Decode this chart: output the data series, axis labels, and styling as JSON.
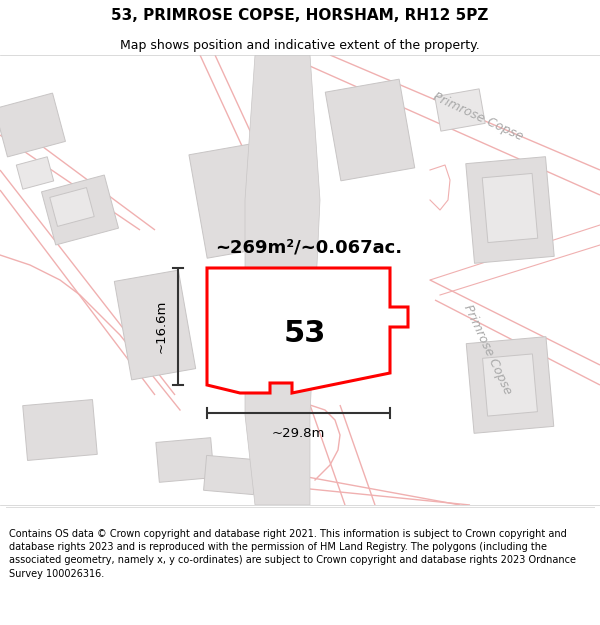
{
  "title": "53, PRIMROSE COPSE, HORSHAM, RH12 5PZ",
  "subtitle": "Map shows position and indicative extent of the property.",
  "area_label": "~269m²/~0.067ac.",
  "number_label": "53",
  "width_label": "~29.8m",
  "height_label": "~16.6m",
  "footer": "Contains OS data © Crown copyright and database right 2021. This information is subject to Crown copyright and database rights 2023 and is reproduced with the permission of HM Land Registry. The polygons (including the associated geometry, namely x, y co-ordinates) are subject to Crown copyright and database rights 2023 Ordnance Survey 100026316.",
  "bg_color": "#f7f6f6",
  "road_outline_color": "#f0b0b0",
  "building_fill": "#e0dddd",
  "building_edge": "#c8c5c5",
  "plot_fill": "#ffffff",
  "plot_edge": "#ff0000",
  "dim_color": "#333333",
  "street_color": "#aaaaaa",
  "title_fontsize": 11,
  "subtitle_fontsize": 9,
  "area_fontsize": 13,
  "number_fontsize": 22,
  "dim_fontsize": 9.5,
  "street_fontsize": 9,
  "footer_fontsize": 7.0
}
